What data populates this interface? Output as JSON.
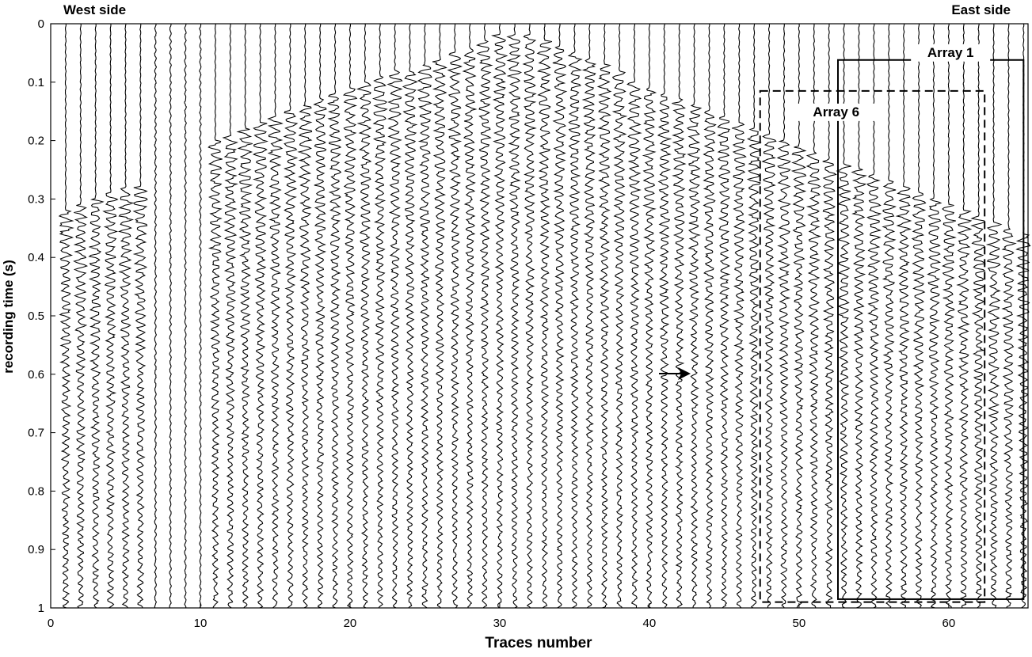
{
  "chart_data": {
    "type": "seismic",
    "left_note": "West side",
    "right_note": "East side",
    "xlabel": "Traces number",
    "ylabel": "recording time (s)",
    "xlim": [
      0,
      65.3
    ],
    "xticks": [
      0,
      10,
      20,
      30,
      40,
      50,
      60
    ],
    "ylim": [
      0,
      1
    ],
    "yticks": [
      0,
      0.1,
      0.2,
      0.3,
      0.4,
      0.5,
      0.6,
      0.7,
      0.8,
      0.9,
      1
    ],
    "y_inverted": true,
    "color": "#000000",
    "x": [
      1,
      2,
      3,
      4,
      5,
      6,
      7,
      8,
      9,
      10,
      11,
      12,
      13,
      14,
      15,
      16,
      17,
      18,
      19,
      20,
      21,
      22,
      23,
      24,
      25,
      26,
      27,
      28,
      29,
      30,
      31,
      32,
      33,
      34,
      35,
      36,
      37,
      38,
      39,
      40,
      41,
      42,
      43,
      44,
      45,
      46,
      47,
      48,
      49,
      50,
      51,
      52,
      53,
      54,
      55,
      56,
      57,
      58,
      59,
      60,
      61,
      62,
      63,
      64,
      65
    ],
    "values": [
      0.32,
      0.31,
      0.3,
      0.29,
      0.28,
      0.28,
      null,
      null,
      null,
      null,
      0.2,
      0.19,
      0.18,
      0.17,
      0.16,
      0.15,
      0.14,
      0.13,
      0.12,
      0.11,
      0.1,
      0.09,
      0.08,
      0.08,
      0.07,
      0.06,
      0.05,
      0.04,
      0.03,
      0.02,
      0.02,
      0.02,
      0.03,
      0.04,
      0.05,
      0.06,
      0.07,
      0.08,
      0.1,
      0.11,
      0.12,
      0.13,
      0.14,
      0.15,
      0.16,
      0.17,
      0.18,
      0.19,
      0.2,
      0.21,
      0.22,
      0.23,
      0.24,
      0.25,
      0.26,
      0.27,
      0.28,
      0.29,
      0.3,
      0.31,
      0.32,
      0.33,
      0.34,
      0.35,
      0.36
    ],
    "arrays": [
      {
        "label": "Array 1",
        "x": [
          52.6,
          65.0
        ],
        "t": [
          0.062,
          0.985
        ],
        "dashed": false
      },
      {
        "label": "Array 6",
        "x": [
          47.4,
          62.4
        ],
        "t": [
          0.115,
          0.99
        ],
        "dashed": true
      }
    ]
  }
}
